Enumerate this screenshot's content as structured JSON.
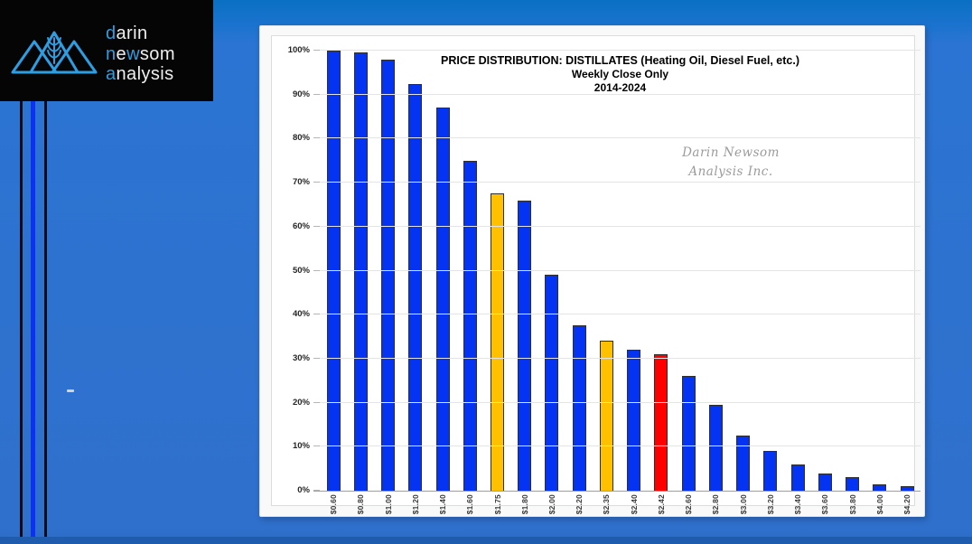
{
  "logo": {
    "accent": "#2E9EE2",
    "words": [
      {
        "segments": [
          [
            "d",
            true
          ],
          [
            "arin",
            false
          ]
        ]
      },
      {
        "segments": [
          [
            "n",
            true
          ],
          [
            "e",
            false
          ],
          [
            "w",
            true
          ],
          [
            "som",
            false
          ]
        ]
      },
      {
        "segments": [
          [
            "a",
            true
          ],
          [
            "nalysis",
            false
          ]
        ]
      }
    ]
  },
  "chart_data": {
    "type": "bar",
    "title": "PRICE DISTRIBUTION: DISTILLATES (Heating Oil, Diesel Fuel, etc.)",
    "subtitle": "Weekly Close Only",
    "period": "2014-2024",
    "watermark_lines": [
      "Darin Newsom",
      "Analysis Inc."
    ],
    "ylabel": "",
    "xlabel": "",
    "ylim": [
      0,
      100
    ],
    "ytick_step": 10,
    "yticks": [
      "0%",
      "10%",
      "20%",
      "30%",
      "40%",
      "50%",
      "60%",
      "70%",
      "80%",
      "90%",
      "100%"
    ],
    "grid": true,
    "legend": false,
    "bar_colors": {
      "default": "#0533F2",
      "highlight": "#FFC000",
      "alert": "#FF0000"
    },
    "points": [
      {
        "label": "$0.60",
        "value": 100,
        "color": "#0533F2"
      },
      {
        "label": "$0.80",
        "value": 99.5,
        "color": "#0533F2"
      },
      {
        "label": "$1.00",
        "value": 98,
        "color": "#0533F2"
      },
      {
        "label": "$1.20",
        "value": 92.5,
        "color": "#0533F2"
      },
      {
        "label": "$1.40",
        "value": 87,
        "color": "#0533F2"
      },
      {
        "label": "$1.60",
        "value": 75,
        "color": "#0533F2"
      },
      {
        "label": "$1.75",
        "value": 67.5,
        "color": "#FFC000"
      },
      {
        "label": "$1.80",
        "value": 66,
        "color": "#0533F2"
      },
      {
        "label": "$2.00",
        "value": 49,
        "color": "#0533F2"
      },
      {
        "label": "$2.20",
        "value": 37.5,
        "color": "#0533F2"
      },
      {
        "label": "$2.35",
        "value": 34,
        "color": "#FFC000"
      },
      {
        "label": "$2.40",
        "value": 32,
        "color": "#0533F2"
      },
      {
        "label": "$2.42",
        "value": 31,
        "color": "#FF0000"
      },
      {
        "label": "$2.60",
        "value": 26,
        "color": "#0533F2"
      },
      {
        "label": "$2.80",
        "value": 19.5,
        "color": "#0533F2"
      },
      {
        "label": "$3.00",
        "value": 12.5,
        "color": "#0533F2"
      },
      {
        "label": "$3.20",
        "value": 9,
        "color": "#0533F2"
      },
      {
        "label": "$3.40",
        "value": 6,
        "color": "#0533F2"
      },
      {
        "label": "$3.60",
        "value": 4,
        "color": "#0533F2"
      },
      {
        "label": "$3.80",
        "value": 3,
        "color": "#0533F2"
      },
      {
        "label": "$4.00",
        "value": 1.5,
        "color": "#0533F2"
      },
      {
        "label": "$4.20",
        "value": 1,
        "color": "#0533F2"
      }
    ]
  }
}
